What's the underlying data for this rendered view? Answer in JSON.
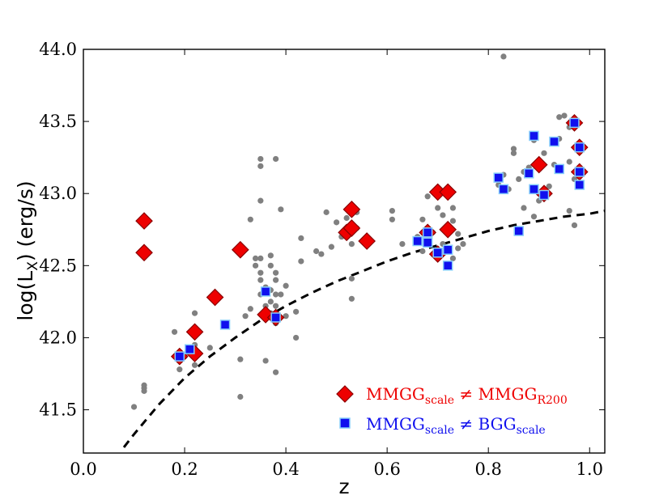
{
  "chart_data": {
    "type": "scatter",
    "xlabel": "z",
    "ylabel": "log(L",
    "ylabel_sub": "X",
    "ylabel_tail": ") (erg/s)",
    "xlim": [
      0.0,
      1.03
    ],
    "ylim": [
      41.2,
      44.0
    ],
    "xticks": [
      "0.0",
      "0.2",
      "0.4",
      "0.6",
      "0.8",
      "1.0"
    ],
    "xtick_values": [
      0.0,
      0.2,
      0.4,
      0.6,
      0.8,
      1.0
    ],
    "yticks": [
      "41.5",
      "42.0",
      "42.5",
      "43.0",
      "43.5",
      "44.0"
    ],
    "ytick_values": [
      41.5,
      42.0,
      42.5,
      43.0,
      43.5,
      44.0
    ],
    "grid": false,
    "legend_position": "lower-right",
    "colors": {
      "gray": "#808080",
      "red": "#ee0000",
      "red_edge": "#8b0000",
      "blue": "#1010ee",
      "blue_edge": "#87cefa",
      "curve": "#000000"
    },
    "legend": [
      {
        "marker": "red-diamond",
        "label_main": "MMGG",
        "label_sub1": "scale",
        "label_neq": " ≠ ",
        "label_main2": "MMGG",
        "label_sub2": "R200"
      },
      {
        "marker": "blue-square",
        "label_main": "MMGG",
        "label_sub1": "scale",
        "label_neq": " ≠ ",
        "label_main2": "BGG",
        "label_sub2": "scale"
      }
    ],
    "series": [
      {
        "marker": "gray-circle",
        "points": [
          [
            0.1,
            41.52
          ],
          [
            0.12,
            41.63
          ],
          [
            0.12,
            41.65
          ],
          [
            0.12,
            41.67
          ],
          [
            0.18,
            42.04
          ],
          [
            0.19,
            41.78
          ],
          [
            0.2,
            41.87
          ],
          [
            0.21,
            41.9
          ],
          [
            0.22,
            41.95
          ],
          [
            0.22,
            42.17
          ],
          [
            0.22,
            41.81
          ],
          [
            0.25,
            41.93
          ],
          [
            0.31,
            41.59
          ],
          [
            0.31,
            41.85
          ],
          [
            0.32,
            42.15
          ],
          [
            0.33,
            42.2
          ],
          [
            0.33,
            42.82
          ],
          [
            0.34,
            42.55
          ],
          [
            0.34,
            42.5
          ],
          [
            0.35,
            42.45
          ],
          [
            0.35,
            42.4
          ],
          [
            0.35,
            42.3
          ],
          [
            0.35,
            42.95
          ],
          [
            0.35,
            43.24
          ],
          [
            0.35,
            43.19
          ],
          [
            0.35,
            42.55
          ],
          [
            0.36,
            42.35
          ],
          [
            0.36,
            42.22
          ],
          [
            0.36,
            41.84
          ],
          [
            0.37,
            42.5
          ],
          [
            0.37,
            42.57
          ],
          [
            0.37,
            42.33
          ],
          [
            0.37,
            42.25
          ],
          [
            0.37,
            42.17
          ],
          [
            0.38,
            43.24
          ],
          [
            0.38,
            42.45
          ],
          [
            0.38,
            42.4
          ],
          [
            0.38,
            42.3
          ],
          [
            0.38,
            42.22
          ],
          [
            0.38,
            42.15
          ],
          [
            0.38,
            42.1
          ],
          [
            0.38,
            41.76
          ],
          [
            0.39,
            42.3
          ],
          [
            0.39,
            42.89
          ],
          [
            0.4,
            42.36
          ],
          [
            0.4,
            42.15
          ],
          [
            0.42,
            42.18
          ],
          [
            0.42,
            42.0
          ],
          [
            0.43,
            42.69
          ],
          [
            0.43,
            42.53
          ],
          [
            0.46,
            42.6
          ],
          [
            0.47,
            42.58
          ],
          [
            0.48,
            42.87
          ],
          [
            0.49,
            42.63
          ],
          [
            0.5,
            42.8
          ],
          [
            0.51,
            42.7
          ],
          [
            0.52,
            42.83
          ],
          [
            0.53,
            42.65
          ],
          [
            0.53,
            42.41
          ],
          [
            0.53,
            42.27
          ],
          [
            0.54,
            42.87
          ],
          [
            0.54,
            42.76
          ],
          [
            0.56,
            42.7
          ],
          [
            0.61,
            42.88
          ],
          [
            0.61,
            42.82
          ],
          [
            0.63,
            42.65
          ],
          [
            0.66,
            42.7
          ],
          [
            0.67,
            42.6
          ],
          [
            0.67,
            42.82
          ],
          [
            0.68,
            42.98
          ],
          [
            0.69,
            42.73
          ],
          [
            0.7,
            42.9
          ],
          [
            0.7,
            42.57
          ],
          [
            0.71,
            42.85
          ],
          [
            0.71,
            42.65
          ],
          [
            0.72,
            42.75
          ],
          [
            0.72,
            42.98
          ],
          [
            0.73,
            42.9
          ],
          [
            0.73,
            42.81
          ],
          [
            0.73,
            42.55
          ],
          [
            0.74,
            42.72
          ],
          [
            0.74,
            42.62
          ],
          [
            0.75,
            42.65
          ],
          [
            0.82,
            43.06
          ],
          [
            0.83,
            43.13
          ],
          [
            0.83,
            43.95
          ],
          [
            0.84,
            43.03
          ],
          [
            0.85,
            43.28
          ],
          [
            0.85,
            43.31
          ],
          [
            0.86,
            43.1
          ],
          [
            0.87,
            43.15
          ],
          [
            0.87,
            42.9
          ],
          [
            0.88,
            43.18
          ],
          [
            0.88,
            43.15
          ],
          [
            0.89,
            43.37
          ],
          [
            0.89,
            42.84
          ],
          [
            0.9,
            43.0
          ],
          [
            0.9,
            42.95
          ],
          [
            0.91,
            43.28
          ],
          [
            0.92,
            43.05
          ],
          [
            0.93,
            43.2
          ],
          [
            0.94,
            43.38
          ],
          [
            0.94,
            43.53
          ],
          [
            0.95,
            43.54
          ],
          [
            0.96,
            43.46
          ],
          [
            0.96,
            43.22
          ],
          [
            0.96,
            42.88
          ],
          [
            0.97,
            43.1
          ],
          [
            0.97,
            42.78
          ],
          [
            0.98,
            43.35
          ],
          [
            0.98,
            43.05
          ]
        ]
      },
      {
        "marker": "red-diamond",
        "points": [
          [
            0.12,
            42.81
          ],
          [
            0.12,
            42.59
          ],
          [
            0.19,
            41.87
          ],
          [
            0.22,
            41.89
          ],
          [
            0.22,
            42.04
          ],
          [
            0.26,
            42.28
          ],
          [
            0.31,
            42.61
          ],
          [
            0.36,
            42.16
          ],
          [
            0.38,
            42.14
          ],
          [
            0.52,
            42.73
          ],
          [
            0.53,
            42.89
          ],
          [
            0.53,
            42.76
          ],
          [
            0.56,
            42.67
          ],
          [
            0.68,
            42.73
          ],
          [
            0.7,
            42.58
          ],
          [
            0.7,
            43.01
          ],
          [
            0.72,
            42.75
          ],
          [
            0.72,
            43.01
          ],
          [
            0.9,
            43.2
          ],
          [
            0.91,
            43.0
          ],
          [
            0.97,
            43.49
          ],
          [
            0.98,
            43.32
          ],
          [
            0.98,
            43.15
          ]
        ]
      },
      {
        "marker": "blue-square",
        "points": [
          [
            0.19,
            41.87
          ],
          [
            0.21,
            41.92
          ],
          [
            0.28,
            42.09
          ],
          [
            0.36,
            42.32
          ],
          [
            0.38,
            42.14
          ],
          [
            0.66,
            42.67
          ],
          [
            0.68,
            42.66
          ],
          [
            0.68,
            42.73
          ],
          [
            0.7,
            42.59
          ],
          [
            0.72,
            42.5
          ],
          [
            0.72,
            42.61
          ],
          [
            0.82,
            43.11
          ],
          [
            0.83,
            43.03
          ],
          [
            0.86,
            42.74
          ],
          [
            0.88,
            43.14
          ],
          [
            0.89,
            43.4
          ],
          [
            0.89,
            43.03
          ],
          [
            0.91,
            42.99
          ],
          [
            0.93,
            43.36
          ],
          [
            0.94,
            43.17
          ],
          [
            0.97,
            43.49
          ],
          [
            0.98,
            43.32
          ],
          [
            0.98,
            43.06
          ],
          [
            0.98,
            43.15
          ]
        ]
      }
    ],
    "curve": {
      "style": "dashed",
      "points": [
        [
          0.08,
          41.24
        ],
        [
          0.1,
          41.33
        ],
        [
          0.15,
          41.54
        ],
        [
          0.2,
          41.72
        ],
        [
          0.25,
          41.87
        ],
        [
          0.3,
          42.0
        ],
        [
          0.35,
          42.12
        ],
        [
          0.4,
          42.22
        ],
        [
          0.45,
          42.31
        ],
        [
          0.5,
          42.39
        ],
        [
          0.55,
          42.46
        ],
        [
          0.6,
          42.53
        ],
        [
          0.65,
          42.59
        ],
        [
          0.7,
          42.64
        ],
        [
          0.75,
          42.69
        ],
        [
          0.8,
          42.74
        ],
        [
          0.85,
          42.78
        ],
        [
          0.9,
          42.81
        ],
        [
          0.95,
          42.84
        ],
        [
          1.0,
          42.86
        ],
        [
          1.03,
          42.88
        ]
      ]
    }
  }
}
